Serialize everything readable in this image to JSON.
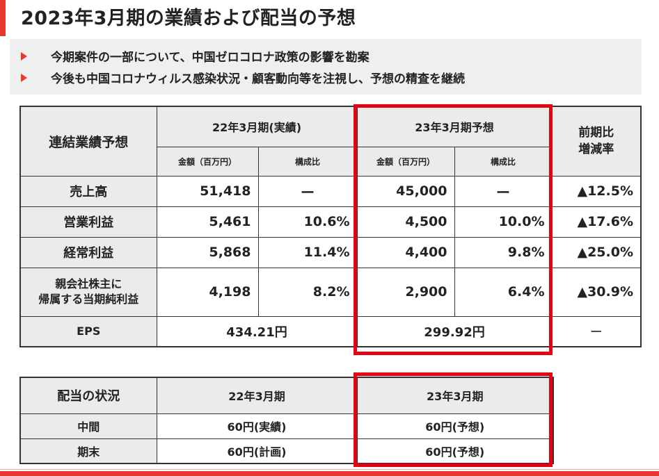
{
  "title": "2023年3月期の業績および配当の予想",
  "bullets": [
    "今期案件の一部について、中国ゼロコロナ政策の影響を勘案",
    "今後も中国コロナウィルス感染状況・顧客動向等を注視し、予想の精査を継続"
  ],
  "results_table": {
    "corner_label": "連結業績予想",
    "period_prev": "22年3月期(実績)",
    "period_next": "23年3月期予想",
    "change_header": "前期比\n増減率",
    "sub_amount": "金額（百万円）",
    "sub_ratio": "構成比",
    "rows": [
      {
        "label": "売上高",
        "prev_amount": "51,418",
        "prev_ratio": "ー",
        "next_amount": "45,000",
        "next_ratio": "ー",
        "change": "▲12.5%"
      },
      {
        "label": "営業利益",
        "prev_amount": "5,461",
        "prev_ratio": "10.6%",
        "next_amount": "4,500",
        "next_ratio": "10.0%",
        "change": "▲17.6%"
      },
      {
        "label": "経常利益",
        "prev_amount": "5,868",
        "prev_ratio": "11.4%",
        "next_amount": "4,400",
        "next_ratio": "9.8%",
        "change": "▲25.0%"
      },
      {
        "label": "親会社株主に\n帰属する当期純利益",
        "prev_amount": "4,198",
        "prev_ratio": "8.2%",
        "next_amount": "2,900",
        "next_ratio": "6.4%",
        "change": "▲30.9%"
      }
    ],
    "eps": {
      "label": "EPS",
      "prev": "434.21円",
      "next": "299.92円",
      "change": "ー"
    }
  },
  "dividend_table": {
    "corner_label": "配当の状況",
    "period_prev": "22年3月期",
    "period_next": "23年3月期",
    "rows": [
      {
        "label": "中間",
        "prev": "60円(実績)",
        "next": "60円(予想)"
      },
      {
        "label": "期末",
        "prev": "60円(計画)",
        "next": "60円(予想)"
      }
    ]
  },
  "colors": {
    "accent": "#e8372e",
    "highlight": "#e50012",
    "header_bg": "#ebebeb"
  }
}
